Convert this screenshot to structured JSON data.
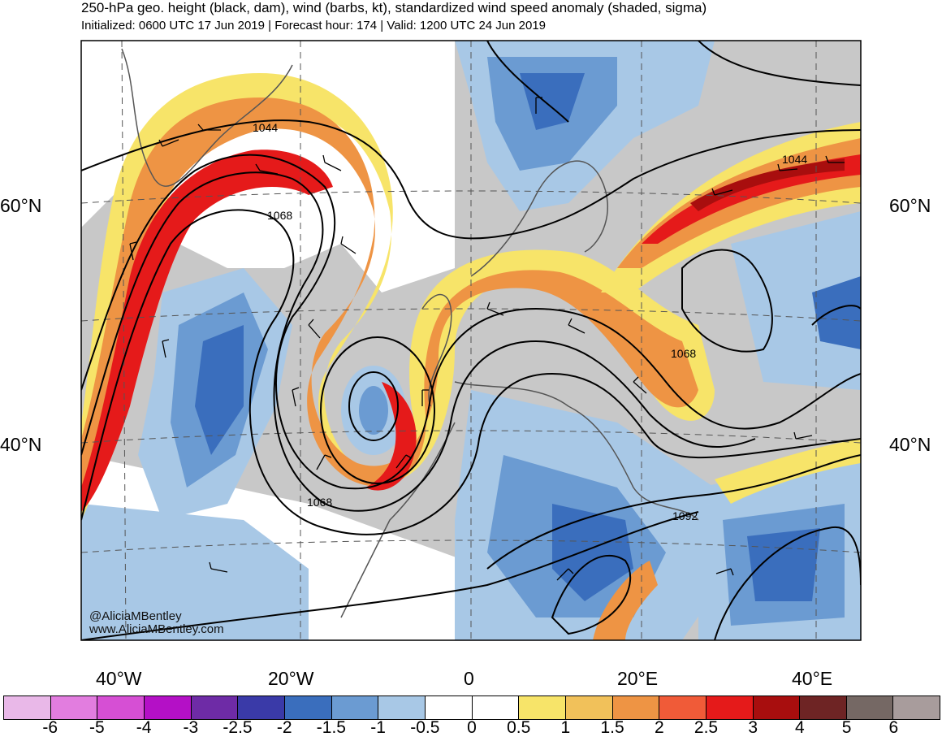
{
  "header": {
    "title": "250-hPa geo. height (black, dam), wind (barbs, kt), standardized wind speed anomaly (shaded, sigma)",
    "subtitle": "Initialized: 0600 UTC 17 Jun 2019 | Forecast hour: 174 | Valid: 1200 UTC 24 Jun 2019"
  },
  "map": {
    "left_lat_labels": [
      "60°N",
      "40°N"
    ],
    "right_lat_labels": [
      "60°N",
      "40°N"
    ],
    "lon_labels": [
      "40°W",
      "20°W",
      "0",
      "20°E",
      "40°E"
    ],
    "contour_labels": [
      "1044",
      "1068",
      "1068",
      "1044",
      "1068",
      "1092"
    ],
    "credit_handle": "@AliciaMBentley",
    "credit_url": "www.AliciaMBentley.com"
  },
  "colorbar": {
    "colors": [
      "#e9b8e8",
      "#e27ddf",
      "#d64fd4",
      "#b410c6",
      "#6e2ba6",
      "#3a3aa8",
      "#3a6ebd",
      "#6b9bd2",
      "#a8c8e6",
      "#ffffff",
      "#ffffff",
      "#f7e469",
      "#f1c15a",
      "#ee9444",
      "#f05b38",
      "#e51a1a",
      "#a80e0e",
      "#6e2424",
      "#756864",
      "#a89c9c"
    ],
    "labels": [
      "-6",
      "-5",
      "-4",
      "-3",
      "-2.5",
      "-2",
      "-1.5",
      "-1",
      "-0.5",
      "0",
      "0.5",
      "1",
      "1.5",
      "2",
      "2.5",
      "3",
      "4",
      "5",
      "6"
    ]
  }
}
